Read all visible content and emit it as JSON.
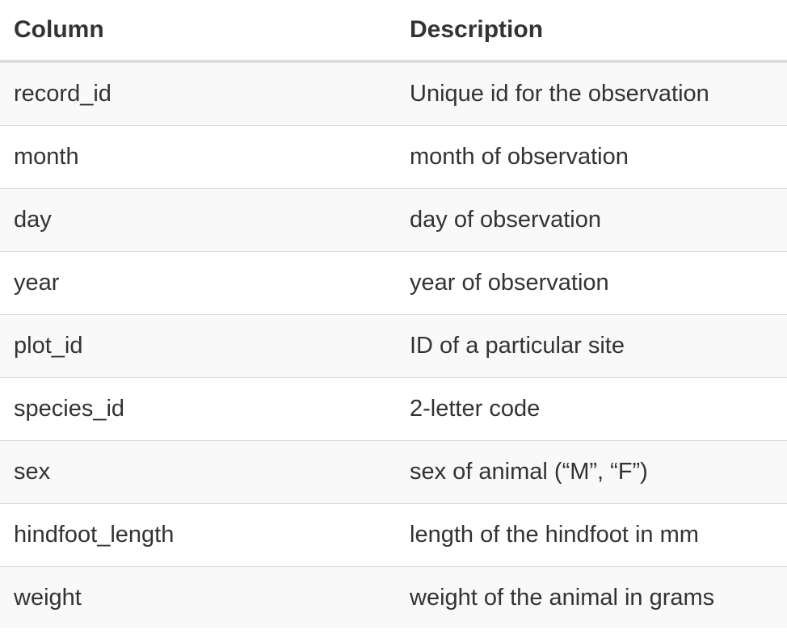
{
  "table": {
    "headers": [
      "Column",
      "Description"
    ],
    "rows": [
      [
        "record_id",
        "Unique id for the observation"
      ],
      [
        "month",
        "month of observation"
      ],
      [
        "day",
        "day of observation"
      ],
      [
        "year",
        "year of observation"
      ],
      [
        "plot_id",
        "ID of a particular site"
      ],
      [
        "species_id",
        "2-letter code"
      ],
      [
        "sex",
        "sex of animal (“M”, “F”)"
      ],
      [
        "hindfoot_length",
        "length of the hindfoot in mm"
      ],
      [
        "weight",
        "weight of the animal in grams"
      ]
    ]
  }
}
